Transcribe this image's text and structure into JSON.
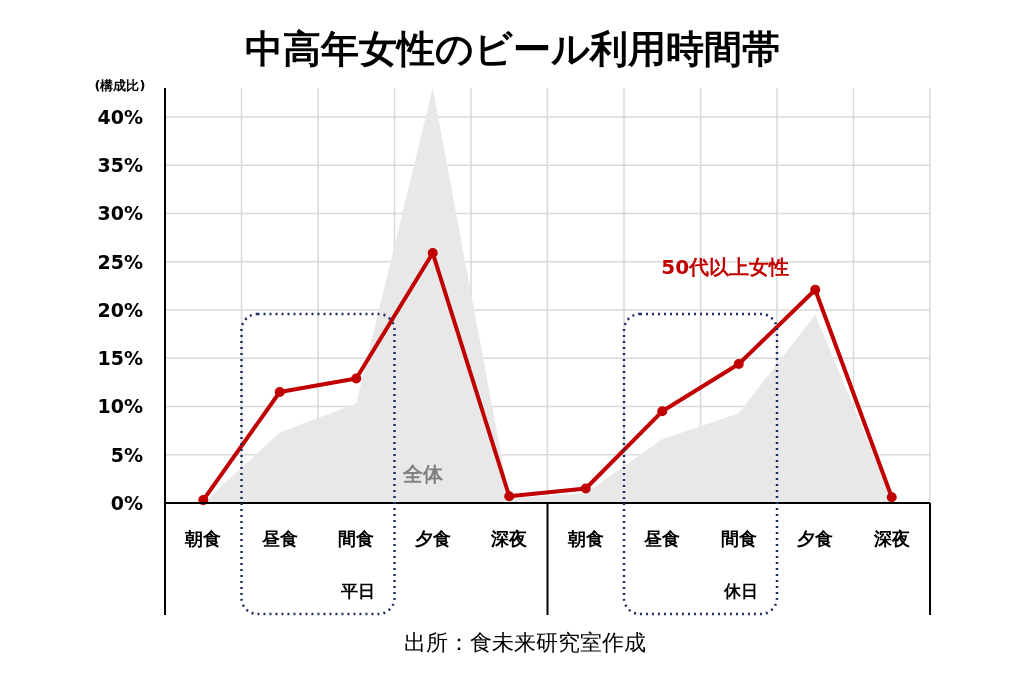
{
  "chart_data": {
    "type": "line",
    "title": "中高年女性のビール利用時間帯",
    "ylabel": "(構成比)",
    "categories": [
      "朝食",
      "昼食",
      "間食",
      "夕食",
      "深夜",
      "朝食",
      "昼食",
      "間食",
      "夕食",
      "深夜"
    ],
    "series": [
      {
        "name": "全体",
        "type": "area",
        "color": "#e8e8e8",
        "values": [
          0,
          7.3,
          10.3,
          43,
          0.5,
          1,
          6.6,
          9.3,
          19.5,
          0.5
        ]
      },
      {
        "name": "50代以上女性",
        "color": "#c00000",
        "marker": "circle",
        "values": [
          0.3,
          11.5,
          12.9,
          25.9,
          0.7,
          1.5,
          9.5,
          14.4,
          22.1,
          0.6
        ]
      }
    ],
    "ylim": [
      0,
      43
    ],
    "yticks": [
      {
        "value": 0,
        "label": "0%"
      },
      {
        "value": 5,
        "label": "5%"
      },
      {
        "value": 10,
        "label": "10%"
      },
      {
        "value": 15,
        "label": "15%"
      },
      {
        "value": 20,
        "label": "20%"
      },
      {
        "value": 25,
        "label": "25%"
      },
      {
        "value": 30,
        "label": "30%"
      },
      {
        "value": 35,
        "label": "35%"
      },
      {
        "value": 40,
        "label": "40%"
      }
    ],
    "grid": true,
    "line_style": "solid",
    "annotations": [
      "平日",
      "休日",
      "出所：食未来研究室作成"
    ]
  }
}
